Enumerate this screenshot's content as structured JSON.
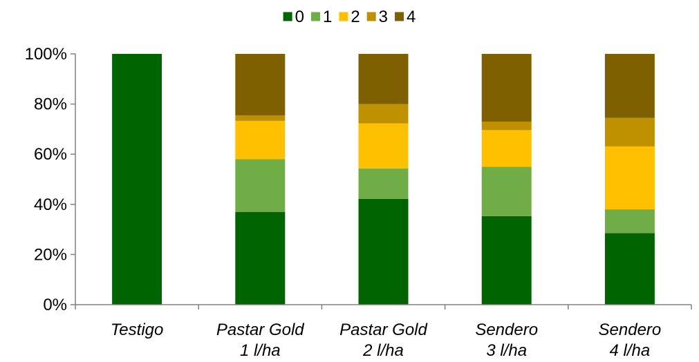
{
  "chart_data": {
    "type": "bar",
    "stacked": true,
    "percent_axis": true,
    "categories": [
      [
        "Testigo"
      ],
      [
        "Pastar Gold",
        "1 l/ha"
      ],
      [
        "Pastar Gold",
        "2 l/ha"
      ],
      [
        "Sendero",
        "3 l/ha"
      ],
      [
        "Sendero",
        "4 l/ha"
      ]
    ],
    "series": [
      {
        "name": "0",
        "color": "#006400",
        "values": [
          100,
          37,
          42.2,
          35.3,
          28.5
        ]
      },
      {
        "name": "1",
        "color": "#70AD47",
        "values": [
          0,
          21,
          12.1,
          19.7,
          9.5
        ]
      },
      {
        "name": "2",
        "color": "#FFC000",
        "values": [
          0,
          15.3,
          18,
          14.6,
          25.1
        ]
      },
      {
        "name": "3",
        "color": "#BF9000",
        "values": [
          0,
          2.2,
          7.7,
          3.4,
          11.4
        ]
      },
      {
        "name": "4",
        "color": "#7F6000",
        "values": [
          0,
          24.5,
          20,
          27,
          25.5
        ]
      }
    ],
    "ylim": [
      0,
      100
    ],
    "yticks": [
      "0%",
      "20%",
      "40%",
      "60%",
      "80%",
      "100%"
    ],
    "ytick_values": [
      0,
      20,
      40,
      60,
      80,
      100
    ],
    "legend_position": "top-center",
    "grid": false,
    "title": "",
    "xlabel": "",
    "ylabel": ""
  }
}
